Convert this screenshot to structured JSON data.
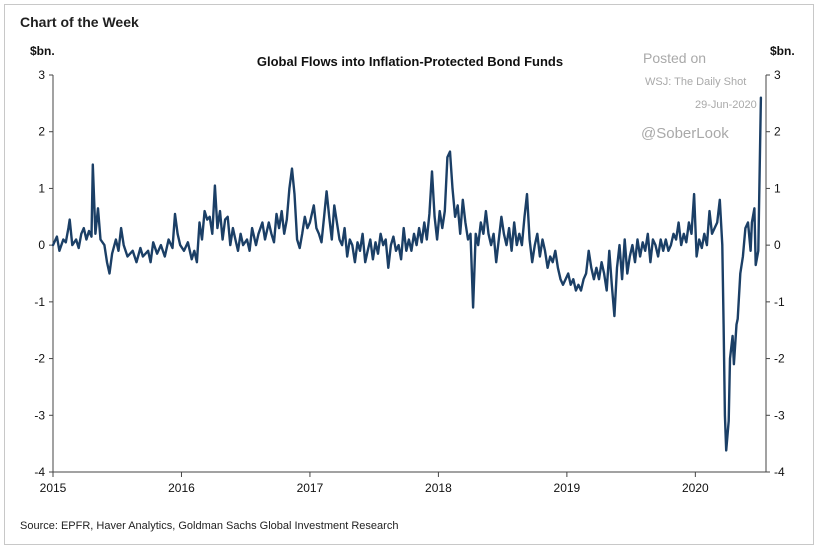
{
  "header": "Chart of the Week",
  "watermark": {
    "posted": "Posted on",
    "outlet": "WSJ: The Daily Shot",
    "date": "29-Jun-2020",
    "handle": "@SoberLook"
  },
  "source": "Source: EPFR, Haver Analytics, Goldman Sachs Global Investment Research",
  "chart_data": {
    "type": "line",
    "title": "Global Flows into Inflation-Protected Bond Funds",
    "ylabel_left": "$bn.",
    "ylabel_right": "$bn.",
    "ylim": [
      -4,
      3
    ],
    "yticks": [
      3,
      2,
      1,
      0,
      -1,
      -2,
      -3,
      -4
    ],
    "xlim": [
      2015.0,
      2020.55
    ],
    "xticks": [
      "2015",
      "2016",
      "2017",
      "2018",
      "2019",
      "2020"
    ],
    "grid": false,
    "line_color": "#1b3f66",
    "series": [
      {
        "values": [
          [
            2015.0,
            0.0
          ],
          [
            2015.03,
            0.15
          ],
          [
            2015.05,
            -0.1
          ],
          [
            2015.08,
            0.1
          ],
          [
            2015.1,
            0.05
          ],
          [
            2015.12,
            0.3
          ],
          [
            2015.13,
            0.45
          ],
          [
            2015.15,
            0.0
          ],
          [
            2015.18,
            0.1
          ],
          [
            2015.2,
            -0.05
          ],
          [
            2015.22,
            0.2
          ],
          [
            2015.24,
            0.3
          ],
          [
            2015.26,
            0.1
          ],
          [
            2015.28,
            0.25
          ],
          [
            2015.3,
            0.15
          ],
          [
            2015.31,
            1.42
          ],
          [
            2015.33,
            0.2
          ],
          [
            2015.35,
            0.65
          ],
          [
            2015.37,
            0.1
          ],
          [
            2015.4,
            0.0
          ],
          [
            2015.42,
            -0.3
          ],
          [
            2015.44,
            -0.5
          ],
          [
            2015.46,
            -0.15
          ],
          [
            2015.49,
            0.1
          ],
          [
            2015.51,
            -0.1
          ],
          [
            2015.53,
            0.3
          ],
          [
            2015.55,
            0.0
          ],
          [
            2015.58,
            -0.2
          ],
          [
            2015.62,
            -0.1
          ],
          [
            2015.65,
            -0.3
          ],
          [
            2015.68,
            -0.05
          ],
          [
            2015.7,
            -0.2
          ],
          [
            2015.74,
            -0.1
          ],
          [
            2015.76,
            -0.3
          ],
          [
            2015.78,
            0.05
          ],
          [
            2015.81,
            -0.15
          ],
          [
            2015.84,
            0.0
          ],
          [
            2015.87,
            -0.2
          ],
          [
            2015.9,
            0.1
          ],
          [
            2015.93,
            -0.05
          ],
          [
            2015.95,
            0.55
          ],
          [
            2015.97,
            0.2
          ],
          [
            2015.99,
            0.0
          ],
          [
            2016.02,
            -0.1
          ],
          [
            2016.05,
            0.05
          ],
          [
            2016.08,
            -0.25
          ],
          [
            2016.1,
            -0.1
          ],
          [
            2016.12,
            -0.3
          ],
          [
            2016.14,
            0.4
          ],
          [
            2016.16,
            0.1
          ],
          [
            2016.18,
            0.6
          ],
          [
            2016.2,
            0.45
          ],
          [
            2016.22,
            0.5
          ],
          [
            2016.24,
            0.2
          ],
          [
            2016.26,
            1.05
          ],
          [
            2016.28,
            0.3
          ],
          [
            2016.3,
            0.6
          ],
          [
            2016.32,
            0.1
          ],
          [
            2016.34,
            0.45
          ],
          [
            2016.36,
            0.5
          ],
          [
            2016.38,
            0.0
          ],
          [
            2016.4,
            0.3
          ],
          [
            2016.42,
            0.1
          ],
          [
            2016.44,
            -0.1
          ],
          [
            2016.46,
            0.2
          ],
          [
            2016.48,
            0.0
          ],
          [
            2016.51,
            0.1
          ],
          [
            2016.53,
            -0.1
          ],
          [
            2016.55,
            0.3
          ],
          [
            2016.58,
            0.0
          ],
          [
            2016.6,
            0.2
          ],
          [
            2016.63,
            0.4
          ],
          [
            2016.65,
            0.1
          ],
          [
            2016.68,
            0.4
          ],
          [
            2016.7,
            0.2
          ],
          [
            2016.72,
            0.05
          ],
          [
            2016.74,
            0.55
          ],
          [
            2016.76,
            0.3
          ],
          [
            2016.78,
            0.6
          ],
          [
            2016.8,
            0.2
          ],
          [
            2016.82,
            0.45
          ],
          [
            2016.84,
            1.0
          ],
          [
            2016.86,
            1.35
          ],
          [
            2016.88,
            0.9
          ],
          [
            2016.9,
            0.1
          ],
          [
            2016.92,
            -0.05
          ],
          [
            2016.94,
            0.2
          ],
          [
            2016.96,
            0.5
          ],
          [
            2016.98,
            0.3
          ],
          [
            2017.0,
            0.4
          ],
          [
            2017.03,
            0.7
          ],
          [
            2017.05,
            0.3
          ],
          [
            2017.07,
            0.2
          ],
          [
            2017.09,
            0.05
          ],
          [
            2017.11,
            0.5
          ],
          [
            2017.13,
            0.95
          ],
          [
            2017.15,
            0.5
          ],
          [
            2017.17,
            0.1
          ],
          [
            2017.19,
            0.7
          ],
          [
            2017.21,
            0.4
          ],
          [
            2017.23,
            0.1
          ],
          [
            2017.25,
            0.0
          ],
          [
            2017.27,
            0.3
          ],
          [
            2017.29,
            -0.2
          ],
          [
            2017.31,
            0.1
          ],
          [
            2017.33,
            0.0
          ],
          [
            2017.35,
            -0.3
          ],
          [
            2017.37,
            0.05
          ],
          [
            2017.39,
            -0.1
          ],
          [
            2017.41,
            0.2
          ],
          [
            2017.43,
            -0.3
          ],
          [
            2017.45,
            -0.1
          ],
          [
            2017.47,
            0.1
          ],
          [
            2017.49,
            -0.25
          ],
          [
            2017.51,
            0.05
          ],
          [
            2017.53,
            -0.15
          ],
          [
            2017.55,
            0.2
          ],
          [
            2017.57,
            0.0
          ],
          [
            2017.59,
            0.1
          ],
          [
            2017.61,
            -0.4
          ],
          [
            2017.63,
            0.0
          ],
          [
            2017.65,
            0.15
          ],
          [
            2017.67,
            -0.1
          ],
          [
            2017.69,
            0.0
          ],
          [
            2017.71,
            -0.25
          ],
          [
            2017.73,
            0.3
          ],
          [
            2017.75,
            -0.1
          ],
          [
            2017.77,
            0.1
          ],
          [
            2017.79,
            -0.1
          ],
          [
            2017.81,
            0.2
          ],
          [
            2017.83,
            0.0
          ],
          [
            2017.85,
            0.3
          ],
          [
            2017.87,
            0.05
          ],
          [
            2017.89,
            0.4
          ],
          [
            2017.91,
            0.1
          ],
          [
            2017.93,
            0.55
          ],
          [
            2017.95,
            1.3
          ],
          [
            2017.97,
            0.5
          ],
          [
            2017.99,
            0.1
          ],
          [
            2018.01,
            0.6
          ],
          [
            2018.03,
            0.3
          ],
          [
            2018.05,
            0.6
          ],
          [
            2018.07,
            1.55
          ],
          [
            2018.09,
            1.65
          ],
          [
            2018.11,
            1.0
          ],
          [
            2018.13,
            0.5
          ],
          [
            2018.15,
            0.7
          ],
          [
            2018.17,
            0.2
          ],
          [
            2018.19,
            0.8
          ],
          [
            2018.21,
            0.4
          ],
          [
            2018.23,
            0.1
          ],
          [
            2018.25,
            0.2
          ],
          [
            2018.27,
            -1.1
          ],
          [
            2018.29,
            0.2
          ],
          [
            2018.31,
            0.0
          ],
          [
            2018.33,
            0.4
          ],
          [
            2018.35,
            0.2
          ],
          [
            2018.37,
            0.6
          ],
          [
            2018.39,
            0.2
          ],
          [
            2018.41,
            0.0
          ],
          [
            2018.43,
            0.2
          ],
          [
            2018.45,
            -0.3
          ],
          [
            2018.47,
            0.1
          ],
          [
            2018.49,
            0.5
          ],
          [
            2018.51,
            0.2
          ],
          [
            2018.53,
            0.0
          ],
          [
            2018.55,
            0.3
          ],
          [
            2018.57,
            -0.1
          ],
          [
            2018.59,
            0.4
          ],
          [
            2018.61,
            0.0
          ],
          [
            2018.63,
            0.2
          ],
          [
            2018.65,
            0.0
          ],
          [
            2018.67,
            0.5
          ],
          [
            2018.69,
            0.9
          ],
          [
            2018.71,
            0.1
          ],
          [
            2018.73,
            -0.3
          ],
          [
            2018.75,
            0.0
          ],
          [
            2018.77,
            0.2
          ],
          [
            2018.79,
            -0.2
          ],
          [
            2018.81,
            0.1
          ],
          [
            2018.83,
            -0.1
          ],
          [
            2018.85,
            -0.4
          ],
          [
            2018.87,
            -0.2
          ],
          [
            2018.89,
            -0.3
          ],
          [
            2018.91,
            -0.1
          ],
          [
            2018.93,
            -0.4
          ],
          [
            2018.95,
            -0.6
          ],
          [
            2018.97,
            -0.7
          ],
          [
            2018.99,
            -0.6
          ],
          [
            2019.01,
            -0.5
          ],
          [
            2019.03,
            -0.7
          ],
          [
            2019.05,
            -0.6
          ],
          [
            2019.07,
            -0.8
          ],
          [
            2019.09,
            -0.7
          ],
          [
            2019.11,
            -0.8
          ],
          [
            2019.13,
            -0.6
          ],
          [
            2019.15,
            -0.5
          ],
          [
            2019.17,
            -0.1
          ],
          [
            2019.19,
            -0.4
          ],
          [
            2019.21,
            -0.6
          ],
          [
            2019.23,
            -0.4
          ],
          [
            2019.25,
            -0.6
          ],
          [
            2019.27,
            -0.3
          ],
          [
            2019.29,
            -0.5
          ],
          [
            2019.31,
            -0.8
          ],
          [
            2019.33,
            -0.1
          ],
          [
            2019.35,
            -0.7
          ],
          [
            2019.37,
            -1.25
          ],
          [
            2019.39,
            -0.4
          ],
          [
            2019.41,
            0.0
          ],
          [
            2019.43,
            -0.6
          ],
          [
            2019.45,
            0.1
          ],
          [
            2019.47,
            -0.5
          ],
          [
            2019.49,
            -0.2
          ],
          [
            2019.51,
            0.0
          ],
          [
            2019.53,
            -0.3
          ],
          [
            2019.55,
            0.1
          ],
          [
            2019.57,
            -0.2
          ],
          [
            2019.59,
            0.05
          ],
          [
            2019.61,
            -0.1
          ],
          [
            2019.63,
            0.2
          ],
          [
            2019.65,
            -0.3
          ],
          [
            2019.67,
            0.1
          ],
          [
            2019.69,
            0.0
          ],
          [
            2019.71,
            -0.2
          ],
          [
            2019.73,
            0.1
          ],
          [
            2019.75,
            -0.1
          ],
          [
            2019.77,
            0.1
          ],
          [
            2019.79,
            -0.1
          ],
          [
            2019.81,
            0.0
          ],
          [
            2019.83,
            0.2
          ],
          [
            2019.85,
            0.1
          ],
          [
            2019.87,
            0.4
          ],
          [
            2019.89,
            0.0
          ],
          [
            2019.91,
            0.2
          ],
          [
            2019.93,
            0.05
          ],
          [
            2019.95,
            0.4
          ],
          [
            2019.97,
            0.2
          ],
          [
            2019.99,
            0.9
          ],
          [
            2020.01,
            -0.2
          ],
          [
            2020.03,
            0.1
          ],
          [
            2020.05,
            -0.05
          ],
          [
            2020.07,
            0.2
          ],
          [
            2020.09,
            0.0
          ],
          [
            2020.11,
            0.6
          ],
          [
            2020.13,
            0.2
          ],
          [
            2020.15,
            0.3
          ],
          [
            2020.17,
            0.4
          ],
          [
            2020.19,
            0.8
          ],
          [
            2020.21,
            0.0
          ],
          [
            2020.22,
            -1.4
          ],
          [
            2020.23,
            -3.0
          ],
          [
            2020.24,
            -3.62
          ],
          [
            2020.26,
            -3.1
          ],
          [
            2020.27,
            -2.0
          ],
          [
            2020.29,
            -1.6
          ],
          [
            2020.3,
            -2.1
          ],
          [
            2020.32,
            -1.4
          ],
          [
            2020.33,
            -1.3
          ],
          [
            2020.35,
            -0.5
          ],
          [
            2020.37,
            -0.2
          ],
          [
            2020.39,
            0.3
          ],
          [
            2020.41,
            0.4
          ],
          [
            2020.43,
            -0.1
          ],
          [
            2020.44,
            0.4
          ],
          [
            2020.46,
            0.65
          ],
          [
            2020.47,
            -0.35
          ],
          [
            2020.49,
            -0.1
          ],
          [
            2020.51,
            2.6
          ]
        ]
      }
    ]
  }
}
